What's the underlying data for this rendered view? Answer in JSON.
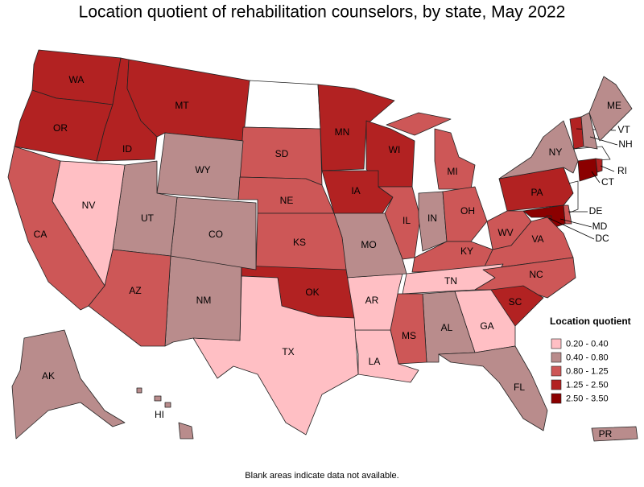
{
  "title": "Location quotient of rehabilitation counselors, by state, May 2022",
  "legend": {
    "title": "Location quotient",
    "bins": [
      {
        "label": "0.20 - 0.40",
        "color": "#ffbfc4"
      },
      {
        "label": "0.40 - 0.80",
        "color": "#b98c8c"
      },
      {
        "label": "0.80 - 1.25",
        "color": "#cd5757"
      },
      {
        "label": "1.25 - 2.50",
        "color": "#b22222"
      },
      {
        "label": "2.50 - 3.50",
        "color": "#8b0000"
      }
    ]
  },
  "states": [
    {
      "label": "WA",
      "bin": 3
    },
    {
      "label": "OR",
      "bin": 3
    },
    {
      "label": "ID",
      "bin": 3
    },
    {
      "label": "MT",
      "bin": 3
    },
    {
      "label": "SD",
      "bin": 2
    },
    {
      "label": "WY",
      "bin": 1
    },
    {
      "label": "NE",
      "bin": 2
    },
    {
      "label": "MN",
      "bin": 3
    },
    {
      "label": "WI",
      "bin": 3
    },
    {
      "label": "IA",
      "bin": 3
    },
    {
      "label": "IL",
      "bin": 2
    },
    {
      "label": "MI",
      "bin": 2
    },
    {
      "label": "IN",
      "bin": 1
    },
    {
      "label": "OH",
      "bin": 2
    },
    {
      "label": "PA",
      "bin": 3
    },
    {
      "label": "NY",
      "bin": 1
    },
    {
      "label": "VT",
      "bin": 3
    },
    {
      "label": "NH",
      "bin": 1
    },
    {
      "label": "ME",
      "bin": 1
    },
    {
      "label": "CT",
      "bin": 4
    },
    {
      "label": "RI",
      "bin": 3
    },
    {
      "label": "DE",
      "bin": 2
    },
    {
      "label": "MD",
      "bin": 4
    },
    {
      "label": "DC",
      "bin": 4
    },
    {
      "label": "WV",
      "bin": 2
    },
    {
      "label": "VA",
      "bin": 2
    },
    {
      "label": "KY",
      "bin": 2
    },
    {
      "label": "TN",
      "bin": 0
    },
    {
      "label": "NC",
      "bin": 2
    },
    {
      "label": "SC",
      "bin": 3
    },
    {
      "label": "GA",
      "bin": 0
    },
    {
      "label": "AL",
      "bin": 1
    },
    {
      "label": "MS",
      "bin": 2
    },
    {
      "label": "LA",
      "bin": 0
    },
    {
      "label": "AR",
      "bin": 0
    },
    {
      "label": "MO",
      "bin": 1
    },
    {
      "label": "KS",
      "bin": 2
    },
    {
      "label": "OK",
      "bin": 3
    },
    {
      "label": "TX",
      "bin": 0
    },
    {
      "label": "NM",
      "bin": 1
    },
    {
      "label": "CO",
      "bin": 1
    },
    {
      "label": "UT",
      "bin": 1
    },
    {
      "label": "AZ",
      "bin": 2
    },
    {
      "label": "NV",
      "bin": 0
    },
    {
      "label": "CA",
      "bin": 2
    },
    {
      "label": "FL",
      "bin": 1
    },
    {
      "label": "AK",
      "bin": 1
    },
    {
      "label": "HI",
      "bin": 1
    },
    {
      "label": "PR",
      "bin": 1
    }
  ],
  "note": "Blank areas indicate data not available."
}
